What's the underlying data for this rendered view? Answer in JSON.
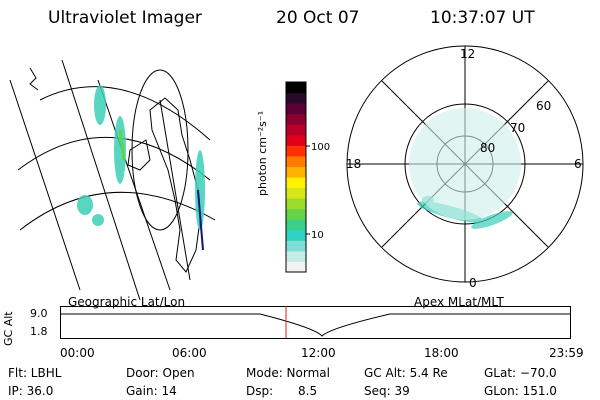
{
  "header": {
    "title": "Ultraviolet Imager",
    "date": "20 Oct 07",
    "time": "10:37:07 UT"
  },
  "left_panel": {
    "caption": "Geographic Lat/Lon"
  },
  "right_panel": {
    "caption": "Apex MLat/MLT",
    "mlt_labels": {
      "top": "12",
      "right": "6",
      "bottom": "0",
      "left": "18"
    },
    "lat_labels": [
      "60",
      "70",
      "80"
    ]
  },
  "colorbar": {
    "unit_label": "photon cm⁻²s⁻¹",
    "tick_labels": [
      "100",
      "10"
    ],
    "colors": [
      "#f2f2f2",
      "#c7ece6",
      "#7fdfd6",
      "#2fd3c4",
      "#3ccf8a",
      "#63d34a",
      "#9bdc2b",
      "#d6e61c",
      "#fff200",
      "#ffb000",
      "#ff7a00",
      "#ff3000",
      "#e00018",
      "#b8002a",
      "#8a0030",
      "#5a0032",
      "#2a0a28",
      "#000000"
    ]
  },
  "timeline": {
    "ylabel": "GC Alt",
    "y_ticks": [
      "9.0",
      "1.8"
    ],
    "x_ticks": [
      "00:00",
      "06:00",
      "12:00",
      "18:00",
      "23:59"
    ],
    "current_marker_time": "10:37:07"
  },
  "status": {
    "flt": "Flt: LBHL",
    "door": "Door: Open",
    "mode": "Mode: Normal",
    "gc_alt": "GC Alt: 5.4 Re",
    "glat": "GLat: −70.0",
    "ip": "IP: 36.0",
    "gain": "Gain: 14",
    "dsp_label": "Dsp:",
    "dsp_value": "8.5",
    "seq": "Seq: 39",
    "glon": "GLon: 151.0"
  }
}
